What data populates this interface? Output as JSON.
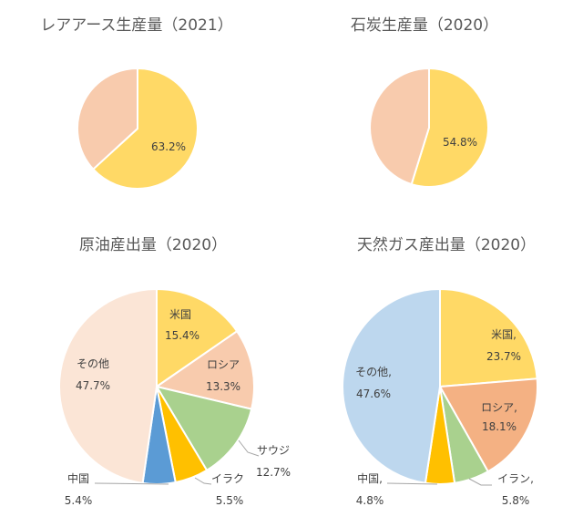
{
  "chart_data": [
    {
      "type": "pie",
      "title": "レアアース生産量（2021）",
      "slices": [
        {
          "label": "",
          "value": 63.2,
          "display": "63.2%",
          "color": "#FFD966"
        },
        {
          "label": "",
          "value": 36.8,
          "display": "",
          "color": "#F8CBAD"
        }
      ]
    },
    {
      "type": "pie",
      "title": "石炭生産量（2020）",
      "slices": [
        {
          "label": "",
          "value": 54.8,
          "display": "54.8%",
          "color": "#FFD966"
        },
        {
          "label": "",
          "value": 45.2,
          "display": "",
          "color": "#F8CBAD"
        }
      ]
    },
    {
      "type": "pie",
      "title": "原油産出量（2020）",
      "slices": [
        {
          "label": "米国",
          "value": 15.4,
          "display": "15.4%",
          "color": "#FFD966"
        },
        {
          "label": "ロシア",
          "value": 13.3,
          "display": "13.3%",
          "color": "#F8CBAD"
        },
        {
          "label": "サウジ",
          "value": 12.7,
          "display": "12.7%",
          "color": "#A9D18E"
        },
        {
          "label": "イラク",
          "value": 5.5,
          "display": "5.5%",
          "color": "#FFC000"
        },
        {
          "label": "中国",
          "value": 5.4,
          "display": "5.4%",
          "color": "#5B9BD5"
        },
        {
          "label": "その他",
          "value": 47.7,
          "display": "47.7%",
          "color": "#FBE5D6"
        }
      ]
    },
    {
      "type": "pie",
      "title": "天然ガス産出量（2020）",
      "slices": [
        {
          "label": "米国,",
          "value": 23.7,
          "display": "23.7%",
          "color": "#FFD966"
        },
        {
          "label": "ロシア,",
          "value": 18.1,
          "display": "18.1%",
          "color": "#F4B183"
        },
        {
          "label": "イラン,",
          "value": 5.8,
          "display": "5.8%",
          "color": "#A9D18E"
        },
        {
          "label": "中国,",
          "value": 4.8,
          "display": "4.8%",
          "color": "#FFC000"
        },
        {
          "label": "その他,",
          "value": 47.6,
          "display": "47.6%",
          "color": "#BDD7EE"
        }
      ]
    }
  ]
}
